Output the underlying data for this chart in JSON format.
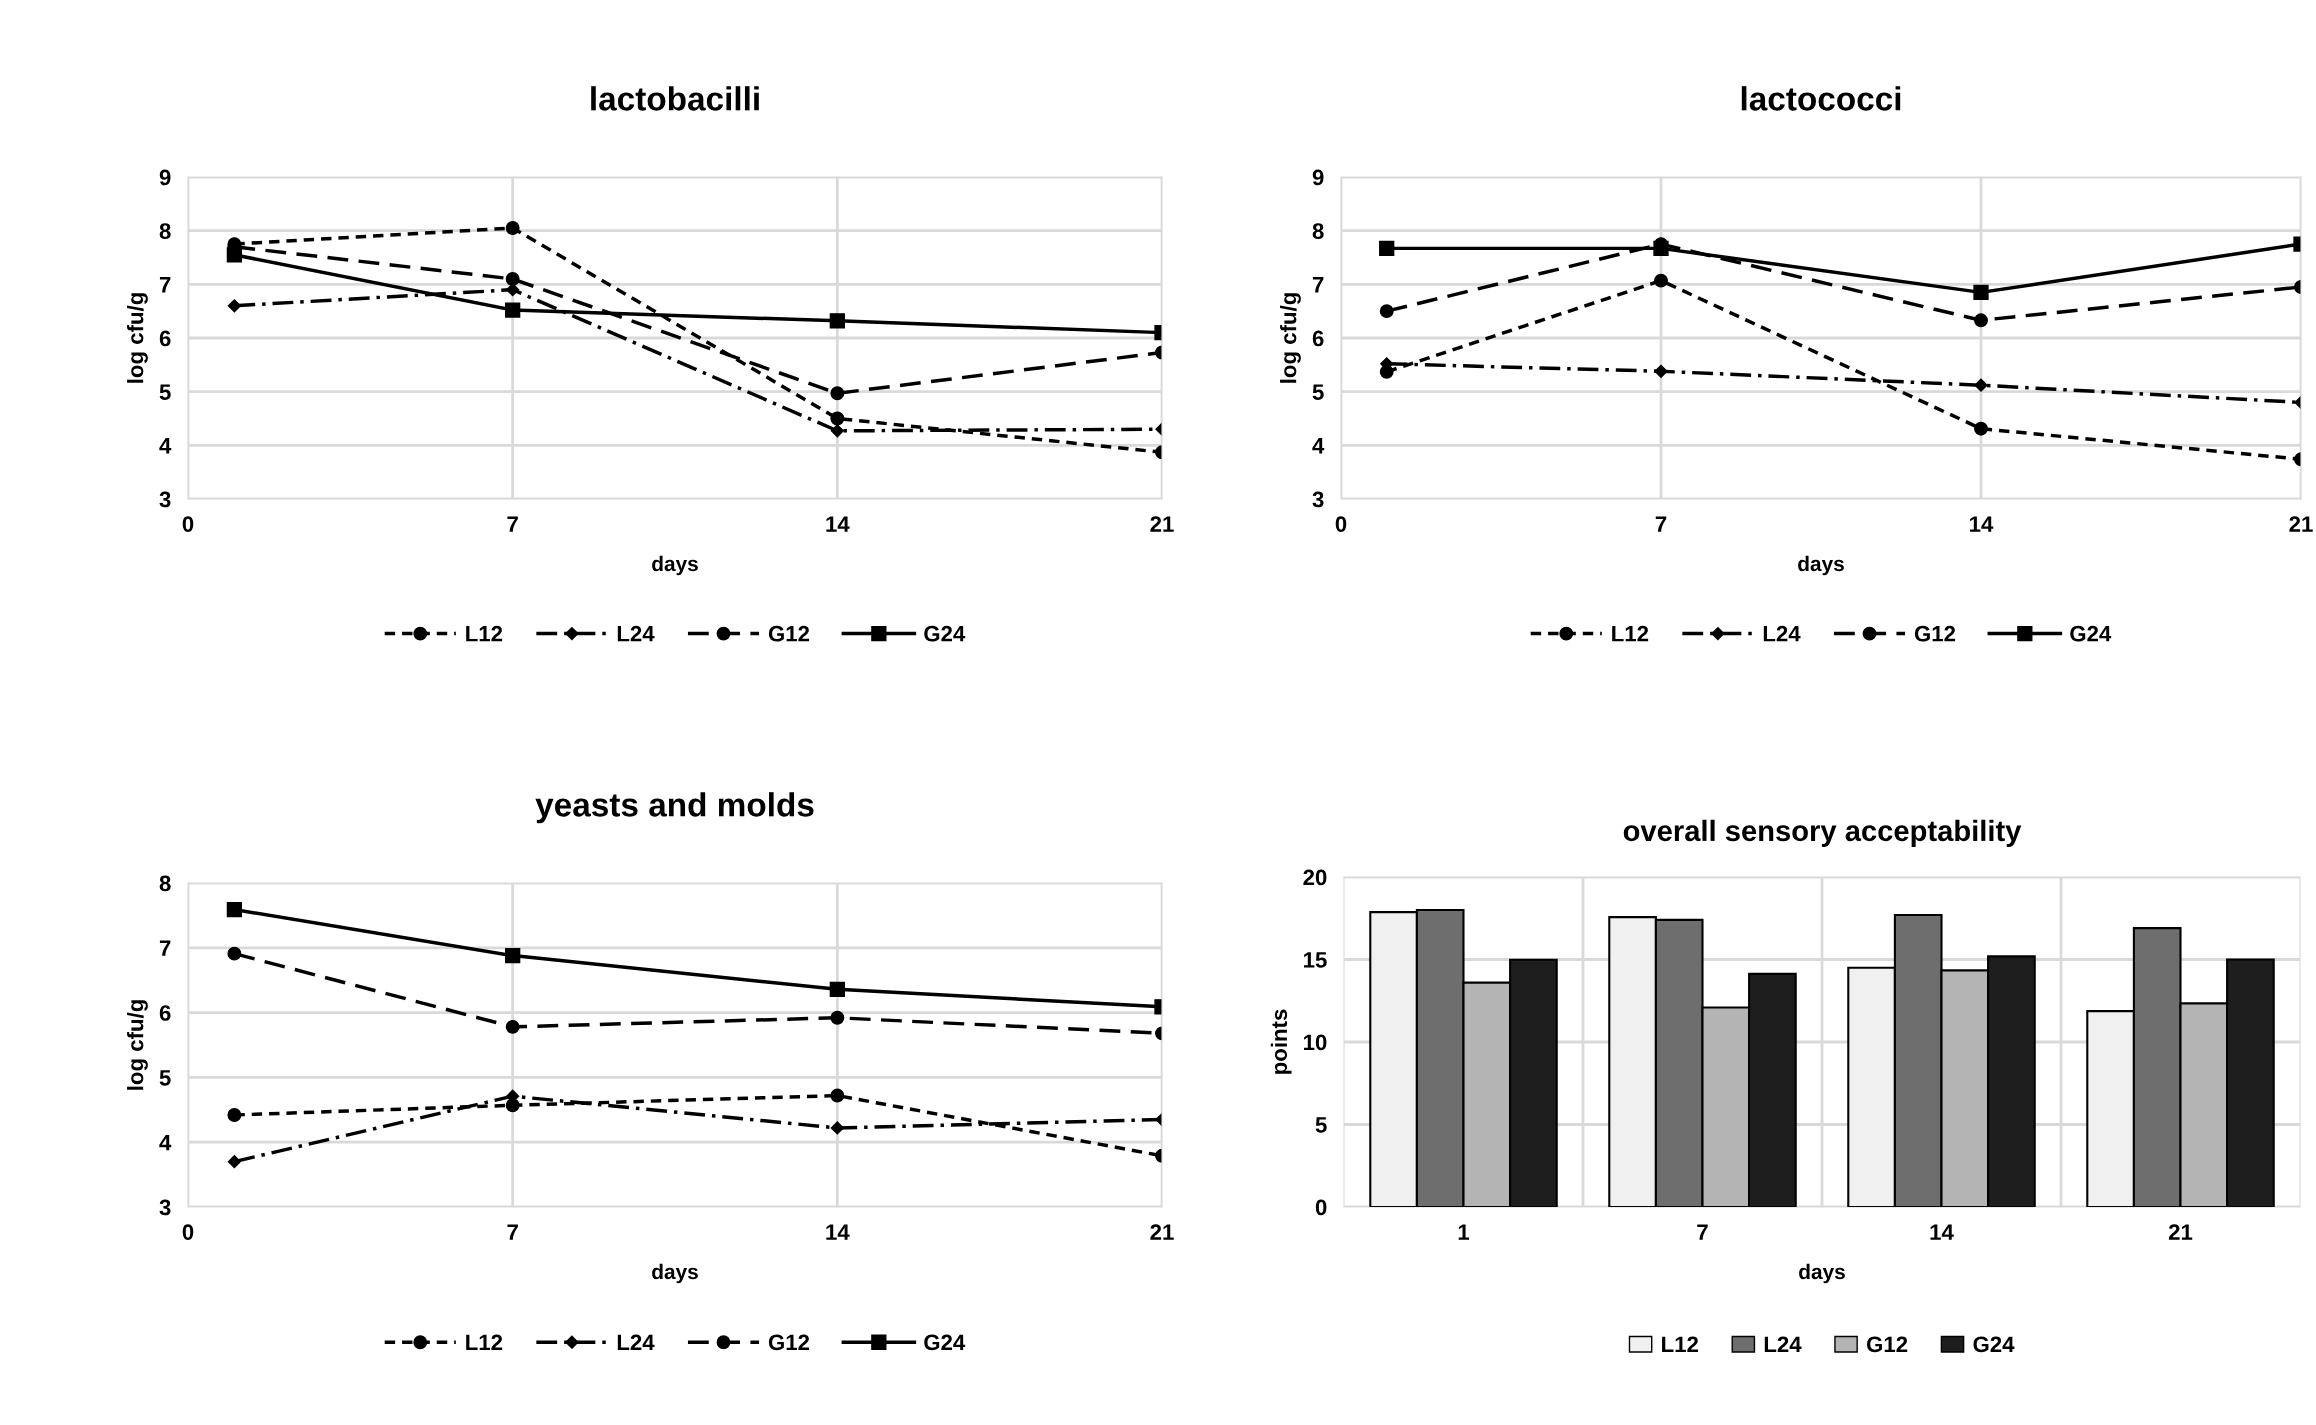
{
  "chart_data": [
    {
      "type": "line",
      "title": "lactobacilli",
      "xlabel": "days",
      "ylabel": "log cfu/g",
      "x": [
        1,
        7,
        14,
        21
      ],
      "xlim": [
        0,
        21
      ],
      "xticks": [
        0,
        7,
        14,
        21
      ],
      "ylim": [
        3,
        9
      ],
      "yticks": [
        3,
        4,
        5,
        6,
        7,
        8,
        9
      ],
      "grid": true,
      "legend": "bottom",
      "series": [
        {
          "name": "L12",
          "color": "#000000",
          "marker": "circle",
          "line_style": "dashed",
          "values": [
            7.75,
            8.05,
            4.5,
            3.87
          ]
        },
        {
          "name": "L24",
          "color": "#000000",
          "marker": "diamond",
          "line_style": "dashdot",
          "values": [
            6.6,
            6.9,
            4.27,
            4.3
          ]
        },
        {
          "name": "G12",
          "color": "#000000",
          "marker": "circle",
          "line_style": "longdash",
          "values": [
            7.7,
            7.1,
            4.97,
            5.73
          ]
        },
        {
          "name": "G24",
          "color": "#000000",
          "marker": "square",
          "line_style": "solid",
          "values": [
            7.55,
            6.52,
            6.32,
            6.1
          ]
        }
      ]
    },
    {
      "type": "line",
      "title": "lactococci",
      "xlabel": "days",
      "ylabel": "log cfu/g",
      "x": [
        1,
        7,
        14,
        21
      ],
      "xlim": [
        0,
        21
      ],
      "xticks": [
        0,
        7,
        14,
        21
      ],
      "ylim": [
        3,
        9
      ],
      "yticks": [
        3,
        4,
        5,
        6,
        7,
        8,
        9
      ],
      "grid": true,
      "legend": "bottom",
      "series": [
        {
          "name": "L12",
          "color": "#000000",
          "marker": "circle",
          "line_style": "dashed",
          "values": [
            5.37,
            7.07,
            4.31,
            3.74
          ]
        },
        {
          "name": "L24",
          "color": "#000000",
          "marker": "diamond",
          "line_style": "dashdot",
          "values": [
            5.52,
            5.38,
            5.12,
            4.8
          ]
        },
        {
          "name": "G12",
          "color": "#000000",
          "marker": "circle",
          "line_style": "longdash",
          "values": [
            6.5,
            7.75,
            6.33,
            6.95
          ]
        },
        {
          "name": "G24",
          "color": "#000000",
          "marker": "square",
          "line_style": "solid",
          "values": [
            7.67,
            7.67,
            6.85,
            7.75
          ]
        }
      ]
    },
    {
      "type": "line",
      "title": "yeasts and molds",
      "xlabel": "days",
      "ylabel": "log cfu/g",
      "x": [
        1,
        7,
        14,
        21
      ],
      "xlim": [
        0,
        21
      ],
      "xticks": [
        0,
        7,
        14,
        21
      ],
      "ylim": [
        3,
        8
      ],
      "yticks": [
        3,
        4,
        5,
        6,
        7,
        8
      ],
      "grid": true,
      "legend": "bottom",
      "series": [
        {
          "name": "L12",
          "color": "#000000",
          "marker": "circle",
          "line_style": "dashed",
          "values": [
            4.42,
            4.57,
            4.72,
            3.79
          ]
        },
        {
          "name": "L24",
          "color": "#000000",
          "marker": "diamond",
          "line_style": "dashdot",
          "values": [
            3.7,
            4.71,
            4.22,
            4.35
          ]
        },
        {
          "name": "G12",
          "color": "#000000",
          "marker": "circle",
          "line_style": "longdash",
          "values": [
            6.91,
            5.78,
            5.92,
            5.68
          ]
        },
        {
          "name": "G24",
          "color": "#000000",
          "marker": "square",
          "line_style": "solid",
          "values": [
            7.59,
            6.88,
            6.36,
            6.09
          ]
        }
      ]
    },
    {
      "type": "bar",
      "title": "overall sensory acceptability",
      "xlabel": "days",
      "ylabel": "points",
      "categories": [
        "1",
        "7",
        "14",
        "21"
      ],
      "ylim": [
        0,
        20
      ],
      "yticks": [
        0,
        5,
        10,
        15,
        20
      ],
      "grid": true,
      "legend": "bottom",
      "series": [
        {
          "name": "L12",
          "color": "#f0f0f0",
          "values": [
            17.87,
            17.57,
            14.5,
            11.87
          ]
        },
        {
          "name": "L24",
          "color": "#6e6e6e",
          "values": [
            18.0,
            17.4,
            17.7,
            16.9
          ]
        },
        {
          "name": "G12",
          "color": "#b4b4b4",
          "values": [
            13.6,
            12.09,
            14.34,
            12.34
          ]
        },
        {
          "name": "G24",
          "color": "#1e1e1e",
          "values": [
            14.98,
            14.13,
            15.19,
            15.0
          ]
        }
      ]
    }
  ]
}
